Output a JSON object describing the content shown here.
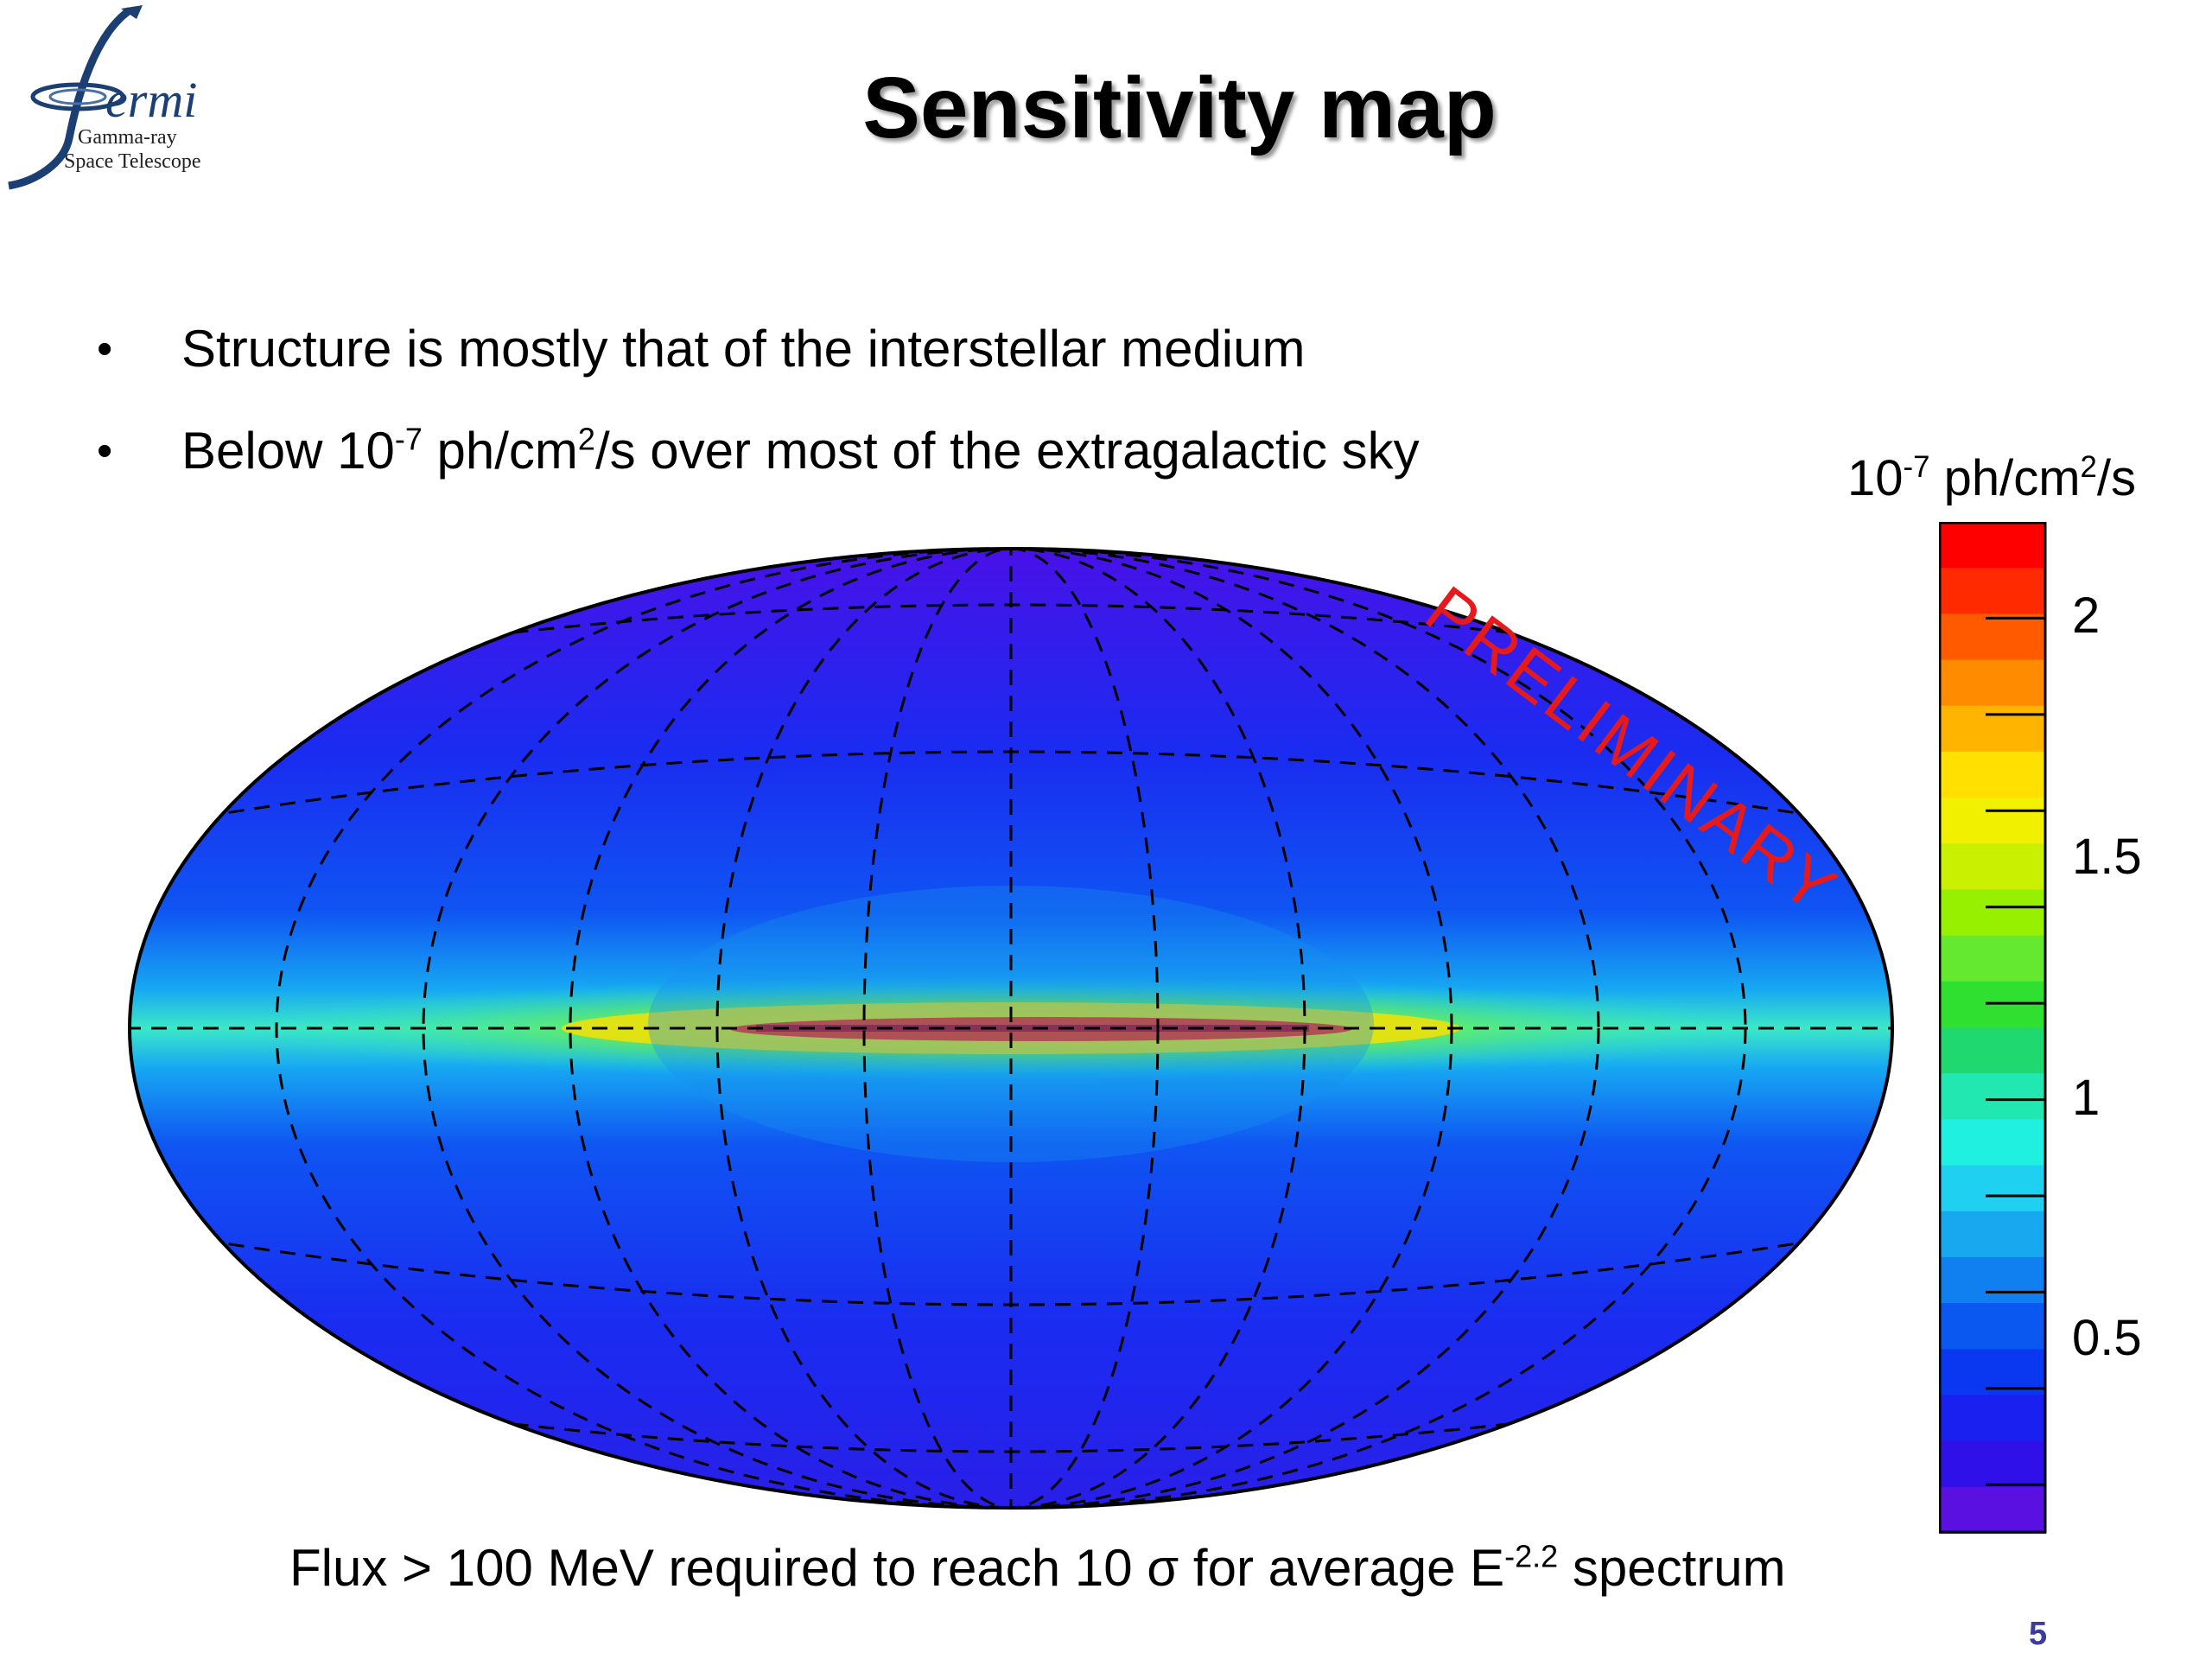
{
  "logo": {
    "word": "ermi",
    "subtitle_line1": "Gamma-ray",
    "subtitle_line2": "Space Telescope"
  },
  "slide": {
    "title": "Sensitivity map",
    "bullets": [
      {
        "text": "Structure is mostly that of the interstellar medium"
      },
      {
        "pre": "Below 10",
        "sup1": "-7",
        "mid": " ph/cm",
        "sup2": "2",
        "post": "/s over most of the extragalactic sky"
      }
    ],
    "watermark": "PRELIMINARY",
    "caption": {
      "pre": "Flux > 100 MeV required to reach 10 σ for average E",
      "sup": "-2.2",
      "post": " spectrum"
    },
    "page_number": "5"
  },
  "chart_data": {
    "type": "heatmap",
    "projection": "aitoff-hammer all-sky",
    "colorbar": {
      "unit": {
        "pre": "10",
        "sup1": "-7",
        "mid": " ph/cm",
        "sup2": "2",
        "post": "/s"
      },
      "range": [
        0.1,
        2.2
      ],
      "ticks": [
        {
          "value": 2,
          "label": "2"
        },
        {
          "value": 1.5,
          "label": "1.5"
        },
        {
          "value": 1,
          "label": "1"
        },
        {
          "value": 0.5,
          "label": "0.5"
        }
      ]
    },
    "grid": true,
    "colors": {
      "low": "#5a16e6",
      "mid": "#17e8f0",
      "high": "#ff0000"
    }
  }
}
